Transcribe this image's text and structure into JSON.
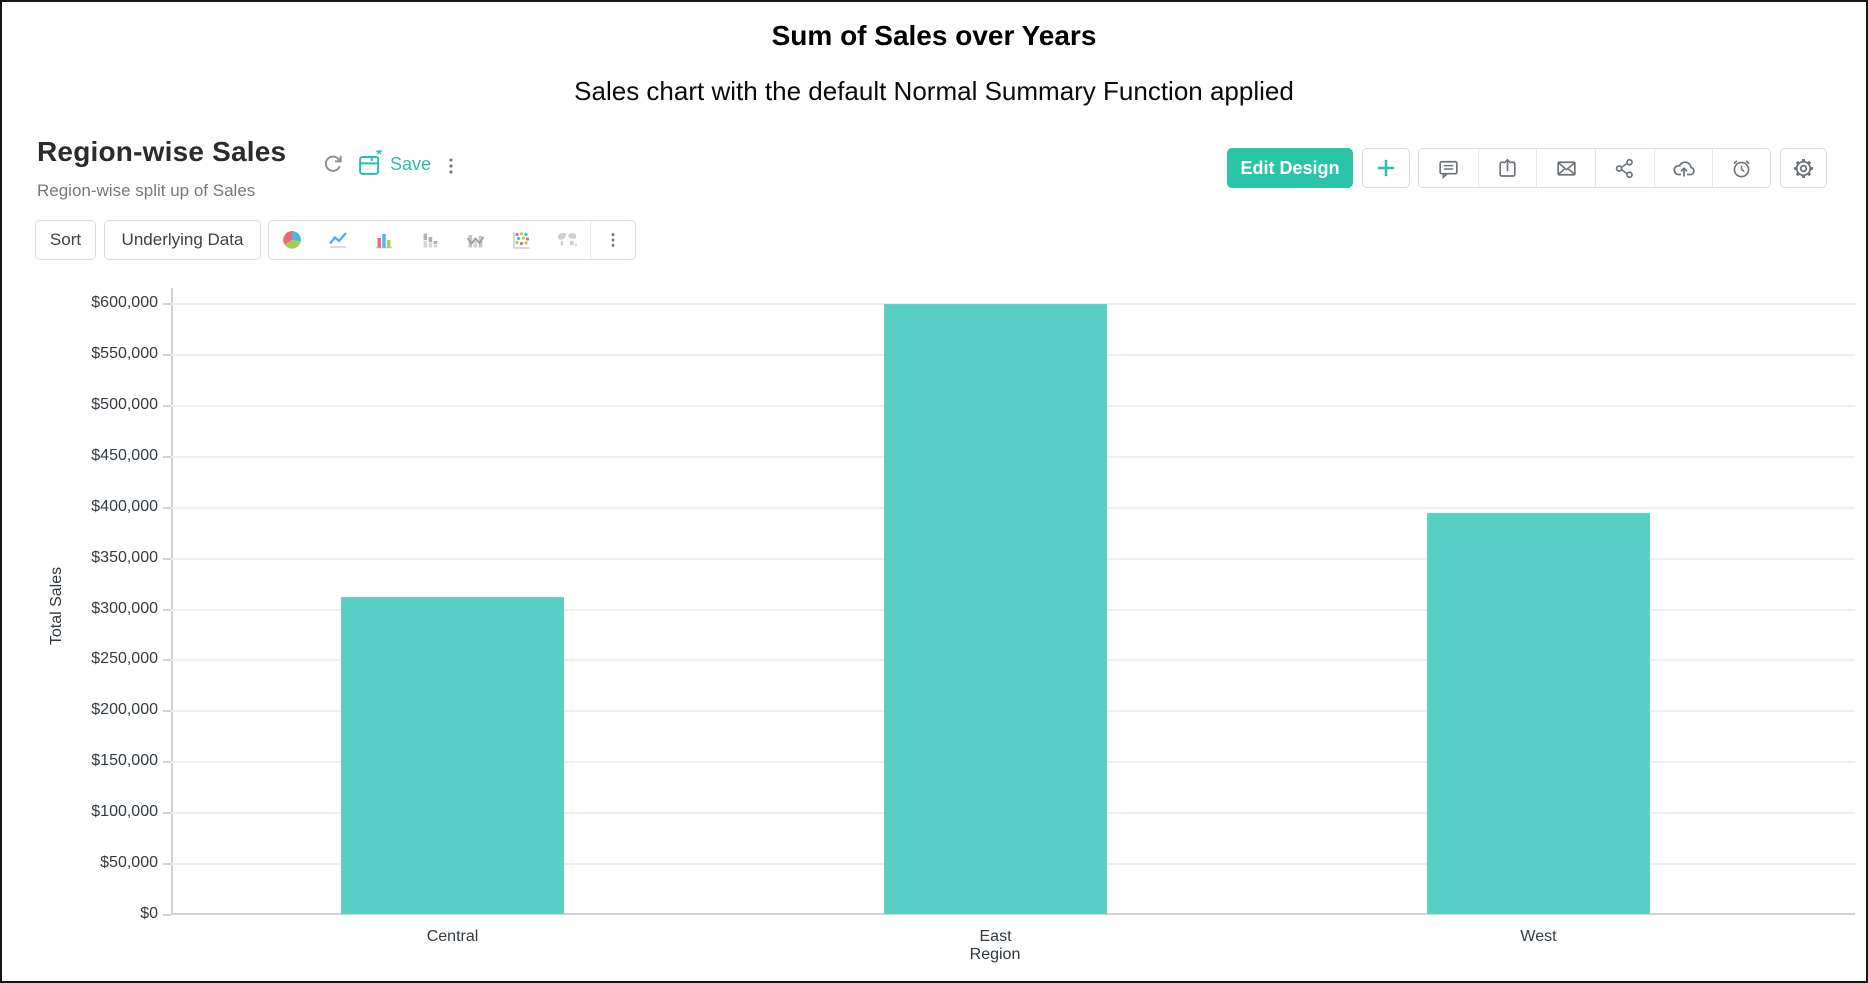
{
  "page": {
    "title": "Sum of Sales over Years",
    "subtitle": "Sales chart with the default Normal Summary Function applied"
  },
  "report": {
    "title": "Region-wise Sales",
    "description": "Region-wise split up of Sales",
    "save_label": "Save"
  },
  "toolbar": {
    "sort_label": "Sort",
    "underlying_data_label": "Underlying Data",
    "chart_types": [
      "pie-chart",
      "line-chart",
      "bar-chart",
      "stacked-bar-chart",
      "combo-chart",
      "scatter-chart",
      "map-chart"
    ],
    "more_options": "more-options"
  },
  "actions": {
    "edit_design_label": "Edit Design",
    "icons": [
      "add",
      "comment",
      "export",
      "email",
      "share",
      "publish-cloud",
      "schedule-alarm",
      "settings-gear"
    ]
  },
  "colors": {
    "accent_teal": "#29c5a6",
    "save_teal": "#29bfae",
    "bar_fill": "#57cfc4",
    "icon_gray": "#6d7378",
    "palette_red": "#e8687d",
    "palette_blue": "#4db7dc",
    "palette_green": "#a8cc53"
  },
  "chart_data": {
    "type": "bar",
    "title": "Region-wise Sales",
    "categories": [
      "Central",
      "East",
      "West"
    ],
    "values": [
      311000,
      599000,
      394000
    ],
    "xlabel": "Region",
    "ylabel": "Total Sales",
    "ylim": [
      0,
      600000
    ],
    "tick_step": 50000,
    "y_tick_labels": [
      "$0",
      "$50,000",
      "$100,000",
      "$150,000",
      "$200,000",
      "$250,000",
      "$300,000",
      "$350,000",
      "$400,000",
      "$450,000",
      "$500,000",
      "$550,000",
      "$600,000"
    ],
    "grid": true,
    "legend": "none",
    "bar_color": "#57cfc4"
  }
}
